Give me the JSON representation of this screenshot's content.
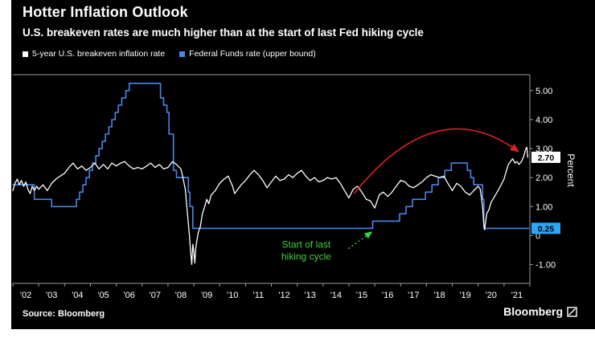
{
  "header": {
    "title": "Hotter Inflation Outlook",
    "subtitle": "U.S. breakeven rates are much higher than at the start of last Fed hiking cycle"
  },
  "legend": [
    {
      "label": "5-year U.S. breakeven inflation rate",
      "color": "#ffffff"
    },
    {
      "label": "Federal Funds rate (upper bound)",
      "color": "#4a86e8"
    }
  ],
  "footer": {
    "source": "Source: Bloomberg",
    "brand": "Bloomberg"
  },
  "chart_data": {
    "type": "line",
    "title": "Hotter Inflation Outlook",
    "xlabel": "",
    "ylabel": "Percent",
    "ylim": [
      -1.65,
      5.55
    ],
    "yticks": [
      5,
      4,
      3,
      2,
      1,
      0,
      -1
    ],
    "ytick_labels": [
      "5.00",
      "4.00",
      "3.00",
      "2.00",
      "1.00",
      "0",
      "-1.00"
    ],
    "xlim": [
      2002,
      2022
    ],
    "xtick_labels": [
      "'02",
      "'03",
      "'04",
      "'05",
      "'06",
      "'07",
      "'08",
      "'09",
      "'10",
      "'11",
      "'12",
      "'13",
      "'14",
      "'15",
      "'16",
      "'17",
      "'18",
      "'19",
      "'20",
      "'21"
    ],
    "grid": false,
    "legend_position": "top-left",
    "series": [
      {
        "id": "fedfunds-line",
        "name": "Federal Funds rate (upper bound)",
        "color": "#4a86e8",
        "width": 1.6,
        "style": "step",
        "points": [
          [
            2002.0,
            1.75
          ],
          [
            2002.83,
            1.25
          ],
          [
            2003.5,
            1.0
          ],
          [
            2004.46,
            1.25
          ],
          [
            2004.58,
            1.5
          ],
          [
            2004.71,
            1.75
          ],
          [
            2004.83,
            2.0
          ],
          [
            2004.96,
            2.25
          ],
          [
            2005.08,
            2.5
          ],
          [
            2005.21,
            2.75
          ],
          [
            2005.33,
            3.0
          ],
          [
            2005.46,
            3.25
          ],
          [
            2005.58,
            3.5
          ],
          [
            2005.71,
            3.75
          ],
          [
            2005.83,
            4.0
          ],
          [
            2005.96,
            4.25
          ],
          [
            2006.08,
            4.5
          ],
          [
            2006.21,
            4.75
          ],
          [
            2006.37,
            5.0
          ],
          [
            2006.5,
            5.25
          ],
          [
            2007.71,
            4.75
          ],
          [
            2007.83,
            4.5
          ],
          [
            2007.96,
            4.25
          ],
          [
            2008.04,
            3.5
          ],
          [
            2008.21,
            2.25
          ],
          [
            2008.33,
            2.0
          ],
          [
            2008.79,
            1.5
          ],
          [
            2008.85,
            1.0
          ],
          [
            2008.96,
            0.25
          ],
          [
            2015.92,
            0.5
          ],
          [
            2016.96,
            0.75
          ],
          [
            2017.21,
            1.0
          ],
          [
            2017.46,
            1.25
          ],
          [
            2017.96,
            1.5
          ],
          [
            2018.21,
            1.75
          ],
          [
            2018.46,
            2.0
          ],
          [
            2018.71,
            2.25
          ],
          [
            2018.96,
            2.5
          ],
          [
            2019.58,
            2.25
          ],
          [
            2019.71,
            2.0
          ],
          [
            2019.83,
            1.75
          ],
          [
            2020.17,
            1.25
          ],
          [
            2020.22,
            0.25
          ],
          [
            2021.95,
            0.25
          ]
        ]
      },
      {
        "id": "breakeven-line",
        "name": "5-year U.S. breakeven inflation rate",
        "color": "#ffffff",
        "width": 1.3,
        "style": "linear",
        "points": [
          [
            2002.0,
            1.55
          ],
          [
            2002.08,
            1.8
          ],
          [
            2002.17,
            1.95
          ],
          [
            2002.25,
            1.75
          ],
          [
            2002.33,
            1.9
          ],
          [
            2002.42,
            1.7
          ],
          [
            2002.5,
            1.85
          ],
          [
            2002.58,
            1.6
          ],
          [
            2002.67,
            1.45
          ],
          [
            2002.75,
            1.7
          ],
          [
            2002.83,
            1.55
          ],
          [
            2002.92,
            1.7
          ],
          [
            2003.0,
            1.6
          ],
          [
            2003.17,
            1.75
          ],
          [
            2003.33,
            1.55
          ],
          [
            2003.5,
            1.8
          ],
          [
            2003.67,
            1.95
          ],
          [
            2003.83,
            2.05
          ],
          [
            2004.0,
            2.15
          ],
          [
            2004.17,
            2.35
          ],
          [
            2004.33,
            2.5
          ],
          [
            2004.5,
            2.3
          ],
          [
            2004.67,
            2.4
          ],
          [
            2004.83,
            2.25
          ],
          [
            2005.0,
            2.35
          ],
          [
            2005.17,
            2.5
          ],
          [
            2005.33,
            2.3
          ],
          [
            2005.5,
            2.45
          ],
          [
            2005.67,
            2.3
          ],
          [
            2005.83,
            2.5
          ],
          [
            2006.0,
            2.4
          ],
          [
            2006.17,
            2.5
          ],
          [
            2006.33,
            2.55
          ],
          [
            2006.5,
            2.4
          ],
          [
            2006.67,
            2.3
          ],
          [
            2006.83,
            2.35
          ],
          [
            2007.0,
            2.3
          ],
          [
            2007.17,
            2.4
          ],
          [
            2007.33,
            2.5
          ],
          [
            2007.5,
            2.35
          ],
          [
            2007.67,
            2.45
          ],
          [
            2007.83,
            2.3
          ],
          [
            2008.0,
            2.35
          ],
          [
            2008.17,
            2.55
          ],
          [
            2008.33,
            2.45
          ],
          [
            2008.5,
            2.3
          ],
          [
            2008.58,
            2.0
          ],
          [
            2008.67,
            1.6
          ],
          [
            2008.75,
            0.8
          ],
          [
            2008.83,
            0.0
          ],
          [
            2008.88,
            -0.6
          ],
          [
            2008.92,
            -1.0
          ],
          [
            2008.96,
            -0.3
          ],
          [
            2009.0,
            -0.55
          ],
          [
            2009.04,
            -0.95
          ],
          [
            2009.08,
            -0.4
          ],
          [
            2009.17,
            0.1
          ],
          [
            2009.25,
            0.3
          ],
          [
            2009.33,
            0.75
          ],
          [
            2009.42,
            1.0
          ],
          [
            2009.5,
            1.25
          ],
          [
            2009.58,
            1.1
          ],
          [
            2009.67,
            1.4
          ],
          [
            2009.83,
            1.55
          ],
          [
            2010.0,
            1.8
          ],
          [
            2010.17,
            1.95
          ],
          [
            2010.33,
            2.05
          ],
          [
            2010.5,
            1.7
          ],
          [
            2010.58,
            1.45
          ],
          [
            2010.67,
            1.55
          ],
          [
            2010.83,
            1.75
          ],
          [
            2011.0,
            1.9
          ],
          [
            2011.17,
            2.1
          ],
          [
            2011.33,
            2.25
          ],
          [
            2011.5,
            2.1
          ],
          [
            2011.67,
            1.9
          ],
          [
            2011.83,
            1.65
          ],
          [
            2012.0,
            1.85
          ],
          [
            2012.17,
            2.05
          ],
          [
            2012.33,
            1.9
          ],
          [
            2012.5,
            1.95
          ],
          [
            2012.67,
            2.1
          ],
          [
            2012.83,
            2.0
          ],
          [
            2013.0,
            2.15
          ],
          [
            2013.17,
            2.25
          ],
          [
            2013.33,
            2.05
          ],
          [
            2013.5,
            1.9
          ],
          [
            2013.67,
            2.0
          ],
          [
            2013.83,
            1.85
          ],
          [
            2014.0,
            1.9
          ],
          [
            2014.17,
            2.0
          ],
          [
            2014.33,
            1.95
          ],
          [
            2014.5,
            2.0
          ],
          [
            2014.67,
            1.8
          ],
          [
            2014.83,
            1.55
          ],
          [
            2015.0,
            1.3
          ],
          [
            2015.17,
            1.6
          ],
          [
            2015.33,
            1.7
          ],
          [
            2015.5,
            1.5
          ],
          [
            2015.67,
            1.25
          ],
          [
            2015.83,
            1.2
          ],
          [
            2016.0,
            0.95
          ],
          [
            2016.17,
            1.4
          ],
          [
            2016.33,
            1.5
          ],
          [
            2016.5,
            1.35
          ],
          [
            2016.67,
            1.5
          ],
          [
            2016.83,
            1.7
          ],
          [
            2017.0,
            1.9
          ],
          [
            2017.17,
            1.85
          ],
          [
            2017.33,
            1.7
          ],
          [
            2017.5,
            1.65
          ],
          [
            2017.67,
            1.75
          ],
          [
            2017.83,
            1.85
          ],
          [
            2018.0,
            2.0
          ],
          [
            2018.17,
            2.1
          ],
          [
            2018.33,
            2.05
          ],
          [
            2018.5,
            2.0
          ],
          [
            2018.67,
            2.05
          ],
          [
            2018.83,
            1.8
          ],
          [
            2019.0,
            1.55
          ],
          [
            2019.17,
            1.8
          ],
          [
            2019.33,
            1.7
          ],
          [
            2019.5,
            1.5
          ],
          [
            2019.67,
            1.4
          ],
          [
            2019.83,
            1.55
          ],
          [
            2020.0,
            1.7
          ],
          [
            2020.08,
            1.6
          ],
          [
            2020.17,
            1.0
          ],
          [
            2020.21,
            0.45
          ],
          [
            2020.25,
            0.2
          ],
          [
            2020.33,
            0.75
          ],
          [
            2020.42,
            0.9
          ],
          [
            2020.5,
            1.15
          ],
          [
            2020.67,
            1.4
          ],
          [
            2020.83,
            1.65
          ],
          [
            2021.0,
            1.95
          ],
          [
            2021.08,
            2.2
          ],
          [
            2021.17,
            2.45
          ],
          [
            2021.25,
            2.55
          ],
          [
            2021.33,
            2.65
          ],
          [
            2021.42,
            2.5
          ],
          [
            2021.5,
            2.55
          ],
          [
            2021.58,
            2.45
          ],
          [
            2021.67,
            2.55
          ],
          [
            2021.75,
            2.7
          ],
          [
            2021.83,
            2.95
          ],
          [
            2021.88,
            3.05
          ],
          [
            2021.92,
            2.7
          ]
        ]
      }
    ],
    "end_labels": [
      {
        "text": "2.70",
        "value": 2.7,
        "bg": "#ffffff",
        "fg": "#000000"
      },
      {
        "text": "0.25",
        "value": 0.25,
        "bg": "#2ea6f6",
        "fg": "#000000"
      }
    ],
    "annotations": {
      "red_arc": {
        "from": [
          2015.2,
          1.45
        ],
        "control": [
          2018.4,
          5.0
        ],
        "to": [
          2021.55,
          2.9
        ],
        "color": "#e02020"
      },
      "green_note": {
        "lines": [
          "Start of last",
          "hiking cycle"
        ],
        "pos": [
          2013.35,
          -0.42
        ],
        "arrow_from": [
          2014.98,
          -0.45
        ],
        "arrow_to": [
          2015.88,
          0.12
        ],
        "color": "#3ecf3e"
      }
    }
  }
}
